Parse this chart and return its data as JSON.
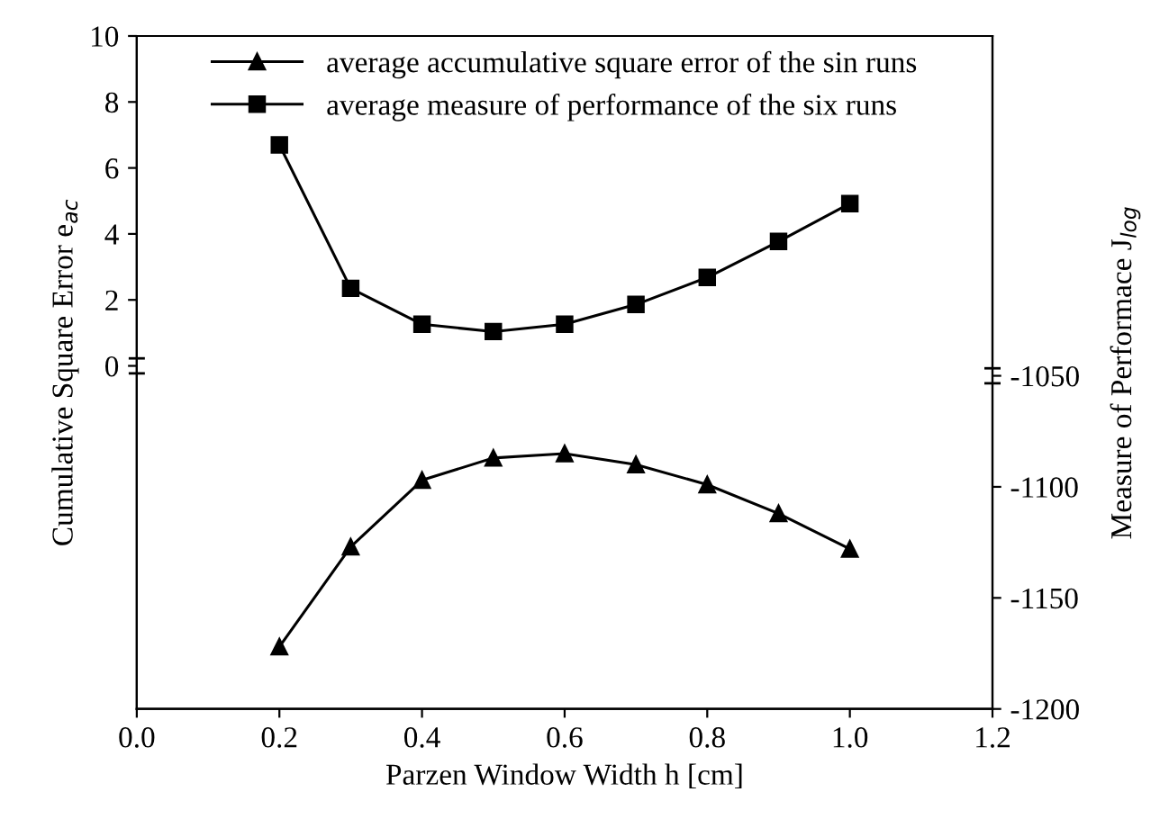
{
  "chart_data": {
    "type": "line",
    "xlabel": "Parzen Window Width h [cm]",
    "ylabel": "Cumulative Square Error e$_{ac}$",
    "y2label": "Measure of Performace J$_{log}$",
    "x": [
      0.2,
      0.3,
      0.4,
      0.5,
      0.6,
      0.7,
      0.8,
      0.9,
      1.0
    ],
    "series": [
      {
        "name": "average accumulative square error of the sin runs",
        "color": "#000000",
        "marker": "triangle",
        "axis": "y2",
        "values": [
          -1172,
          -1127,
          -1097,
          -1087,
          -1085,
          -1090,
          -1099,
          -1112,
          -1128
        ]
      },
      {
        "name": "average measure of performance of the six runs",
        "color": "#000000",
        "marker": "square",
        "values": [
          6.7,
          2.35,
          1.26,
          1.04,
          1.26,
          1.86,
          2.68,
          3.77,
          4.92
        ]
      }
    ],
    "xlim": [
      0,
      1.2
    ],
    "xticks": [
      {
        "value": 0,
        "label": "0.0"
      },
      0.2,
      0.4,
      0.6,
      0.8,
      {
        "value": 1.0,
        "label": "1.0"
      },
      1.2
    ],
    "ylim": [
      -10.4,
      10
    ],
    "yticks": [
      0,
      2,
      4,
      6,
      8,
      10
    ],
    "y2lim": [
      -1200,
      -897
    ],
    "y2ticks": [
      -1200,
      -1150,
      -1100,
      -1050
    ],
    "line_style": "solid",
    "grid": false,
    "legend": "top"
  }
}
